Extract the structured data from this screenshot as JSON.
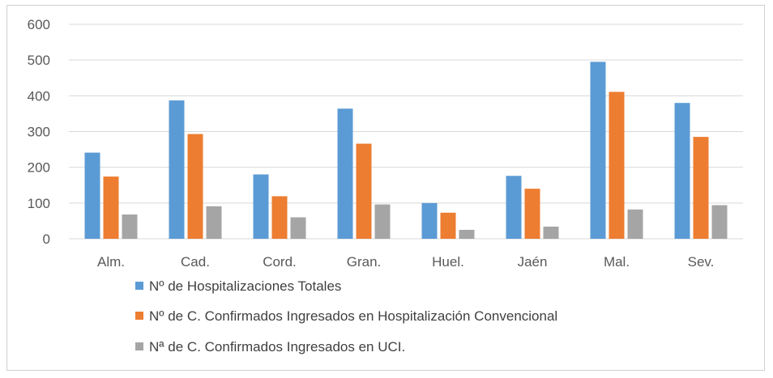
{
  "chart_data": {
    "type": "bar",
    "title": "",
    "xlabel": "",
    "ylabel": "",
    "ylim": [
      0,
      600
    ],
    "yticks": [
      0,
      100,
      200,
      300,
      400,
      500,
      600
    ],
    "grid": true,
    "legend_position": "bottom",
    "categories": [
      "Alm.",
      "Cad.",
      "Cord.",
      "Gran.",
      "Huel.",
      "Jaén",
      "Mal.",
      "Sev."
    ],
    "series": [
      {
        "name": "Nº de Hospitalizaciones Totales",
        "color": "#5b9bd5",
        "values": [
          241,
          387,
          180,
          364,
          100,
          176,
          495,
          380
        ]
      },
      {
        "name": "Nº de C. Confirmados Ingresados en Hospitalización Convencional",
        "color": "#ed7d31",
        "values": [
          174,
          293,
          119,
          266,
          73,
          140,
          411,
          285
        ]
      },
      {
        "name": "Nª de C. Confirmados Ingresados en UCI.",
        "color": "#a5a5a5",
        "values": [
          68,
          91,
          60,
          96,
          25,
          34,
          82,
          94
        ]
      }
    ]
  }
}
